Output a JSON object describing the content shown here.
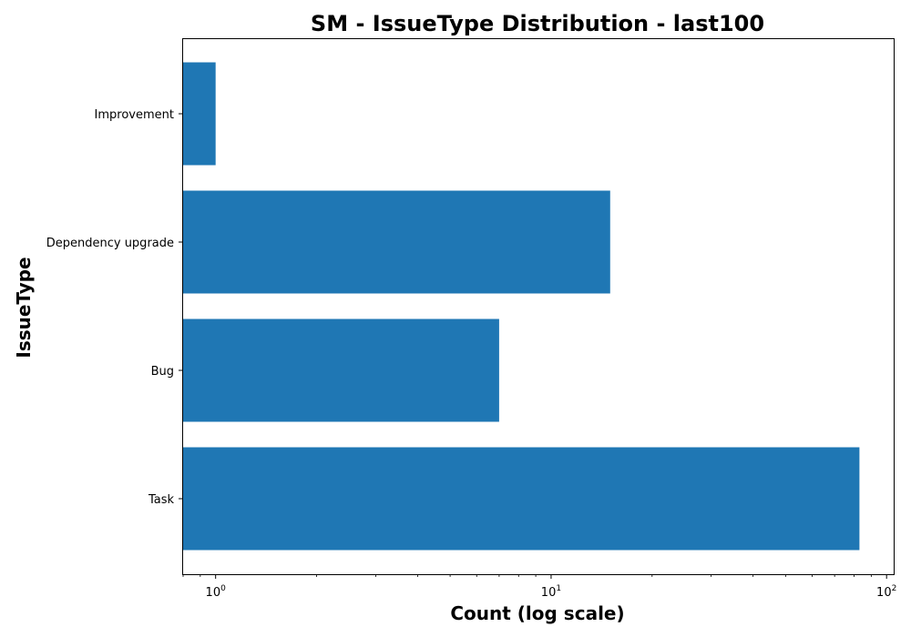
{
  "chart_data": {
    "type": "bar",
    "orientation": "horizontal",
    "title": "SM - IssueType Distribution - last100",
    "xlabel": "Count (log scale)",
    "ylabel": "IssueType",
    "xscale": "log",
    "xlim": [
      0.8,
      105
    ],
    "categories": [
      "Task",
      "Bug",
      "Dependency upgrade",
      "Improvement"
    ],
    "values": [
      83,
      7,
      15,
      1
    ],
    "x_ticks": [
      {
        "value": 1,
        "base": "10",
        "exp": "0"
      },
      {
        "value": 10,
        "base": "10",
        "exp": "1"
      },
      {
        "value": 100,
        "base": "10",
        "exp": "2"
      }
    ],
    "bar_color": "#1f77b4",
    "grid": false
  }
}
